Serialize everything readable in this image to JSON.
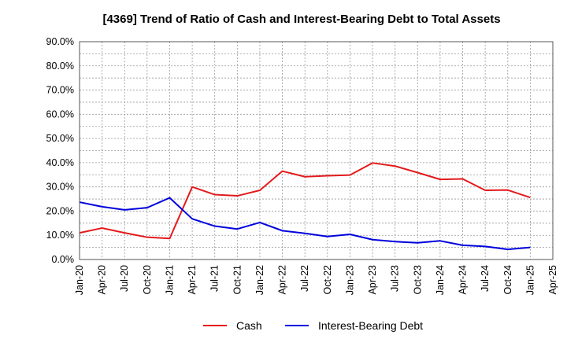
{
  "chart_data": {
    "type": "line",
    "title": "[4369]  Trend of Ratio of Cash and Interest-Bearing Debt to Total Assets",
    "x_ticks": [
      "Jan-20",
      "Apr-20",
      "Jul-20",
      "Oct-20",
      "Jan-21",
      "Apr-21",
      "Jul-21",
      "Oct-21",
      "Jan-22",
      "Apr-22",
      "Jul-22",
      "Oct-22",
      "Jan-23",
      "Apr-23",
      "Jul-23",
      "Oct-23",
      "Jan-24",
      "Apr-24",
      "Jul-24",
      "Oct-24",
      "Jan-25",
      "Apr-25"
    ],
    "x": [
      "Jan-20",
      "Apr-20",
      "Jul-20",
      "Oct-20",
      "Jan-21",
      "Apr-21",
      "Jul-21",
      "Oct-21",
      "Jan-22",
      "Apr-22",
      "Jul-22",
      "Oct-22",
      "Jan-23",
      "Apr-23",
      "Jul-23",
      "Oct-23",
      "Jan-24",
      "Apr-24",
      "Jul-24",
      "Oct-24",
      "Jan-25"
    ],
    "y_ticks": [
      "0.0%",
      "10.0%",
      "20.0%",
      "30.0%",
      "40.0%",
      "50.0%",
      "60.0%",
      "70.0%",
      "80.0%",
      "90.0%"
    ],
    "ylim": [
      0,
      90
    ],
    "grid": true,
    "legend_position": "bottom",
    "series": [
      {
        "name": "Cash",
        "color": "#e31a1c",
        "values": [
          11.0,
          13.0,
          11.0,
          9.2,
          8.7,
          30.0,
          26.8,
          26.3,
          28.6,
          36.5,
          34.2,
          34.6,
          34.9,
          39.9,
          38.6,
          35.9,
          33.1,
          33.3,
          28.6,
          28.7,
          25.6
        ]
      },
      {
        "name": "Interest-Bearing Debt",
        "color": "#0000dd",
        "values": [
          23.7,
          21.8,
          20.5,
          21.4,
          25.5,
          16.8,
          13.8,
          12.6,
          15.3,
          11.9,
          10.8,
          9.5,
          10.4,
          8.2,
          7.4,
          6.9,
          7.7,
          5.9,
          5.4,
          4.2,
          5.0
        ]
      }
    ]
  }
}
